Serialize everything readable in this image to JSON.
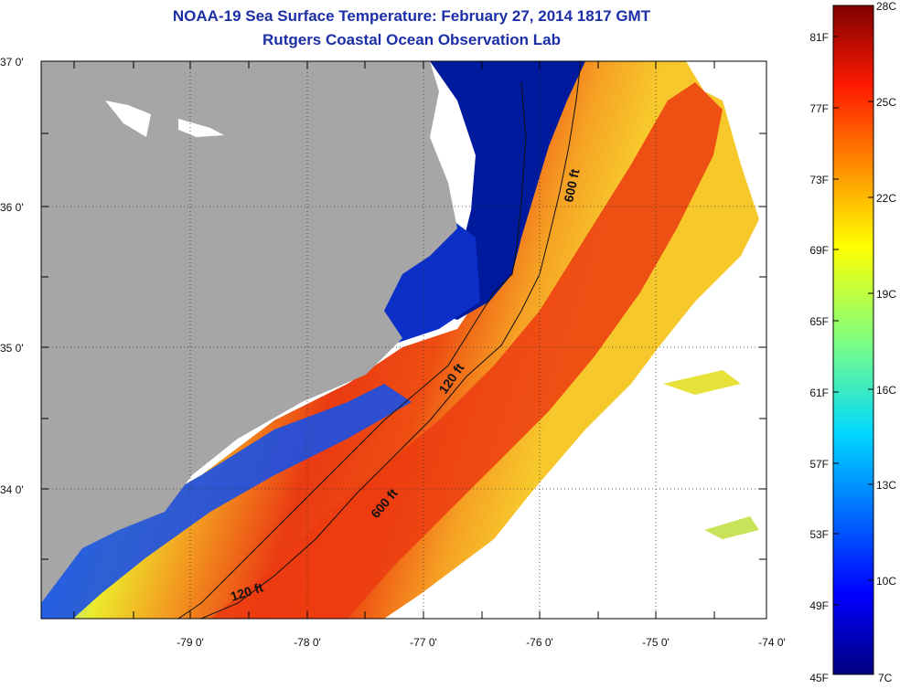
{
  "header": {
    "title": "NOAA-19 Sea Surface Temperature:  February 27, 2014 1817 GMT",
    "subtitle": "Rutgers Coastal Ocean Observation Lab"
  },
  "axes": {
    "lat_labels": [
      "37 0'",
      "36 0'",
      "35 0'",
      "34 0'"
    ],
    "lon_labels": [
      "-79 0'",
      "-78 0'",
      "-77 0'",
      "-76 0'",
      "-75 0'",
      "-74 0'"
    ]
  },
  "contours": {
    "labels": [
      "600 ft",
      "120 ft",
      "600 ft",
      "120 ft"
    ]
  },
  "colorbar": {
    "f_labels": [
      "81F",
      "77F",
      "73F",
      "69F",
      "65F",
      "61F",
      "57F",
      "53F",
      "49F",
      "45F"
    ],
    "c_labels": [
      "28C",
      "25C",
      "22C",
      "19C",
      "16C",
      "13C",
      "10C",
      "7C"
    ]
  },
  "colors": {
    "land": "#a6a6a6",
    "cold": "#001a9e",
    "warm": "#e8350f",
    "title": "#1c2fa6"
  }
}
